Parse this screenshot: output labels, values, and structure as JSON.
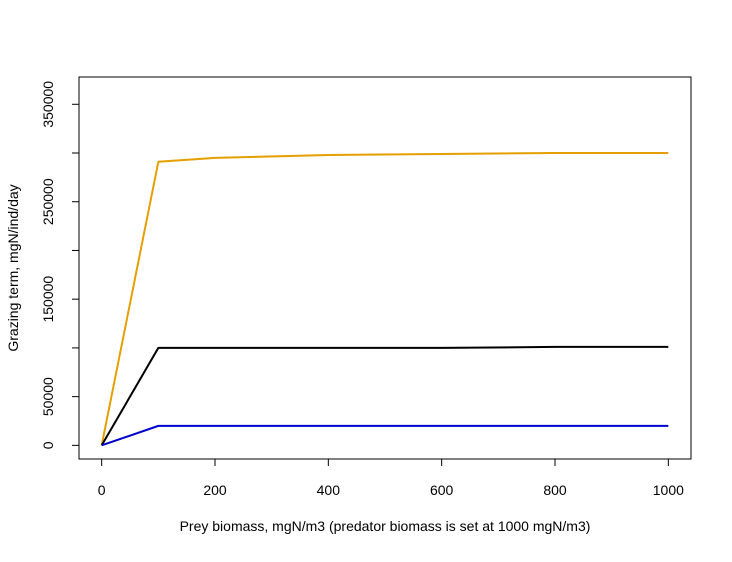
{
  "chart_data": {
    "type": "line",
    "title": "",
    "xlabel": "Prey biomass, mgN/m3 (predator biomass is set at 1000 mgN/m3)",
    "ylabel": "Grazing term, mgN/ind/day",
    "xlim": [
      -40,
      1040
    ],
    "ylim": [
      -14000,
      378000
    ],
    "x_ticks": [
      0,
      200,
      400,
      600,
      800,
      1000
    ],
    "x_tick_labels": [
      "0",
      "200",
      "400",
      "600",
      "800",
      "1000"
    ],
    "y_ticks": [
      0,
      50000,
      100000,
      150000,
      200000,
      250000,
      300000,
      350000
    ],
    "y_tick_labels": [
      "0",
      "50000",
      "",
      "150000",
      "",
      "250000",
      "",
      "350000"
    ],
    "grid": false,
    "legend": "none",
    "series": [
      {
        "name": "orange",
        "color": "#e69f00",
        "x": [
          0,
          100,
          200,
          400,
          600,
          800,
          1000
        ],
        "values": [
          0,
          291000,
          295000,
          298000,
          299000,
          300000,
          300000
        ]
      },
      {
        "name": "black",
        "color": "#000000",
        "x": [
          0,
          100,
          200,
          400,
          600,
          800,
          1000
        ],
        "values": [
          0,
          100000,
          100000,
          100000,
          100000,
          101000,
          101000
        ]
      },
      {
        "name": "blue",
        "color": "#0000cc",
        "x": [
          0,
          100,
          200,
          400,
          600,
          800,
          1000
        ],
        "values": [
          0,
          20000,
          20000,
          20000,
          20000,
          20000,
          20000
        ]
      }
    ]
  }
}
